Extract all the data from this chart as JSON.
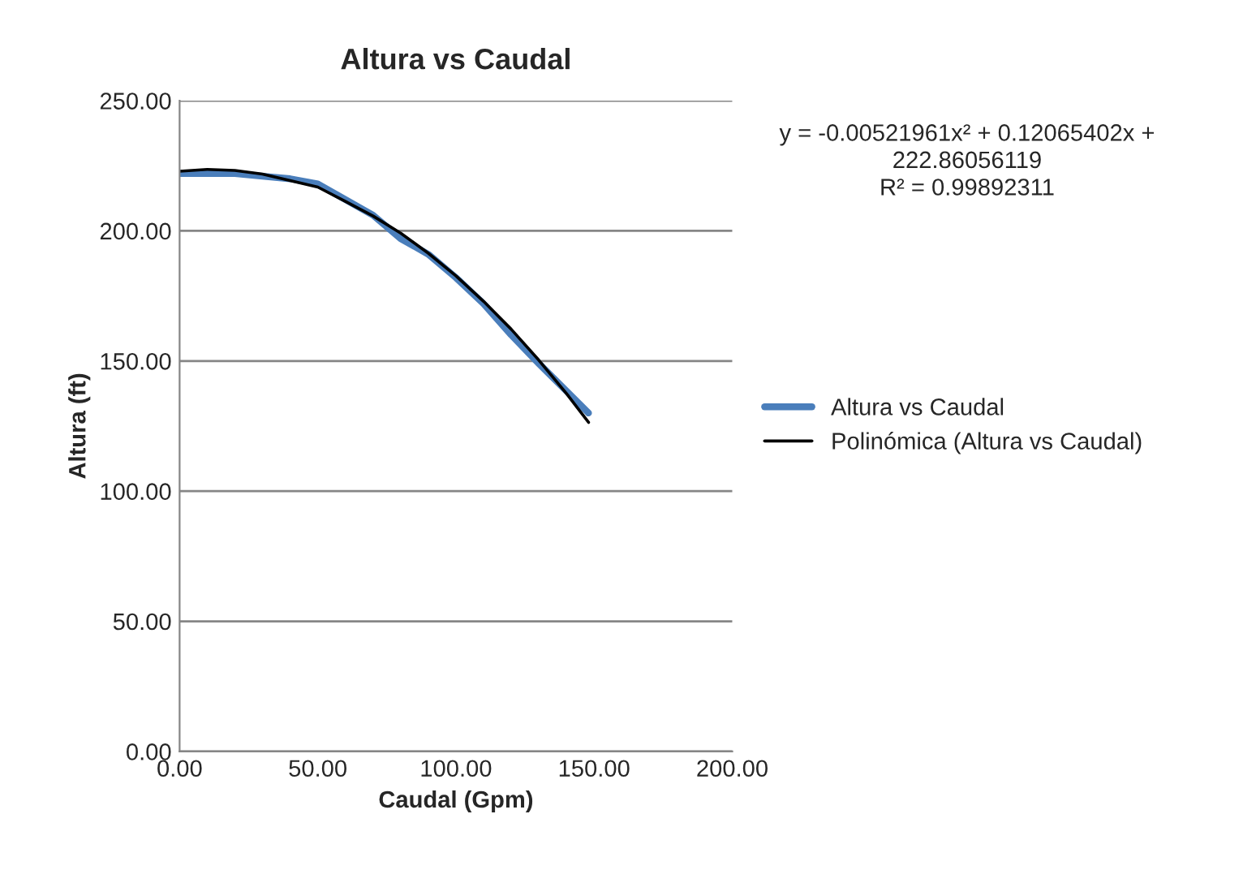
{
  "chart_data": {
    "type": "line",
    "title": "Altura vs Caudal",
    "xlabel": "Caudal (Gpm)",
    "ylabel": "Altura (ft)",
    "xlim": [
      0,
      200
    ],
    "xticks": [
      {
        "value": 0,
        "label": "0.00"
      },
      {
        "value": 50,
        "label": "50.00"
      },
      {
        "value": 100,
        "label": "100.00"
      },
      {
        "value": 150,
        "label": "150.00"
      },
      {
        "value": 200,
        "label": "200.00"
      }
    ],
    "ylim": [
      0,
      250
    ],
    "yticks": [
      {
        "value": 0,
        "label": "0.00"
      },
      {
        "value": 50,
        "label": "50.00"
      },
      {
        "value": 100,
        "label": "100.00"
      },
      {
        "value": 150,
        "label": "150.00"
      },
      {
        "value": 200,
        "label": "200.00"
      },
      {
        "value": 250,
        "label": "250.00"
      }
    ],
    "grid": "y",
    "legend": "right",
    "marker": "none",
    "series": [
      {
        "name": "Altura vs Caudal",
        "color": "#4a7ebb",
        "x": [
          0,
          10,
          20,
          30,
          40,
          50,
          60,
          70,
          80,
          90,
          100,
          110,
          120,
          130,
          148
        ],
        "values": [
          222,
          222,
          222,
          221,
          220,
          218,
          212,
          206,
          197,
          191,
          182,
          172,
          160,
          149,
          130
        ]
      },
      {
        "name": "Polinómica (Altura vs Caudal)",
        "color": "#000000",
        "x": [
          0,
          10,
          20,
          30,
          40,
          50,
          60,
          70,
          80,
          90,
          100,
          110,
          120,
          130,
          140,
          148
        ],
        "values": [
          222.9,
          223.6,
          223.2,
          221.8,
          219.3,
          216.8,
          211.3,
          205.7,
          199.1,
          191.4,
          182.7,
          172.9,
          162.2,
          150.3,
          137.5,
          126.4
        ]
      }
    ],
    "annotations": [
      "y = -0.00521961x² + 0.12065402x +\n222.86056119\nR² = 0.99892311"
    ]
  }
}
